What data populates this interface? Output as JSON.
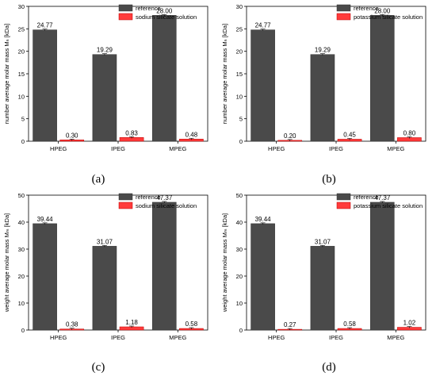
{
  "series_colors": {
    "reference": "#4a4a4a",
    "silicate": "#ff3b3b"
  },
  "chart_data": [
    {
      "type": "bar",
      "panel_label": "(a)",
      "ylabel": "number average molar mass Mₙ [kDa]",
      "categories": [
        "HPEG",
        "IPEG",
        "MPEG"
      ],
      "ylim": [
        0,
        30
      ],
      "yticks": [
        0,
        5,
        10,
        15,
        20,
        25,
        30
      ],
      "legend_position": "top-right",
      "series": [
        {
          "name": "reference",
          "values": [
            24.77,
            19.29,
            28.0
          ],
          "labels": [
            "24.77",
            "19.29",
            "28.00"
          ]
        },
        {
          "name": "sodium silicate solution",
          "values": [
            0.3,
            0.83,
            0.48
          ],
          "labels": [
            "0.30",
            "0.83",
            "0.48"
          ]
        }
      ]
    },
    {
      "type": "bar",
      "panel_label": "(b)",
      "ylabel": "number average molar mass Mₙ [kDa]",
      "categories": [
        "HPEG",
        "IPEG",
        "MPEG"
      ],
      "ylim": [
        0,
        30
      ],
      "yticks": [
        0,
        5,
        10,
        15,
        20,
        25,
        30
      ],
      "legend_position": "top-right",
      "series": [
        {
          "name": "reference",
          "values": [
            24.77,
            19.29,
            28.0
          ],
          "labels": [
            "24.77",
            "19.29",
            "28.00"
          ]
        },
        {
          "name": "potassium silicate solution",
          "values": [
            0.2,
            0.45,
            0.8
          ],
          "labels": [
            "0.20",
            "0.45",
            "0.80"
          ]
        }
      ]
    },
    {
      "type": "bar",
      "panel_label": "(c)",
      "ylabel": "weight average molar mass Mₘ [kDa]",
      "categories": [
        "HPEG",
        "IPEG",
        "MPEG"
      ],
      "ylim": [
        0,
        50
      ],
      "yticks": [
        0,
        10,
        20,
        30,
        40,
        50
      ],
      "legend_position": "top-right",
      "series": [
        {
          "name": "reference",
          "values": [
            39.44,
            31.07,
            47.37
          ],
          "labels": [
            "39.44",
            "31.07",
            "47.37"
          ]
        },
        {
          "name": "sodium silicate solution",
          "values": [
            0.38,
            1.18,
            0.58
          ],
          "labels": [
            "0.38",
            "1.18",
            "0.58"
          ]
        }
      ]
    },
    {
      "type": "bar",
      "panel_label": "(d)",
      "ylabel": "weight average molar mass Mₘ [kDa]",
      "categories": [
        "HPEG",
        "IPEG",
        "MPEG"
      ],
      "ylim": [
        0,
        50
      ],
      "yticks": [
        0,
        10,
        20,
        30,
        40,
        50
      ],
      "legend_position": "top-right",
      "series": [
        {
          "name": "reference",
          "values": [
            39.44,
            31.07,
            47.37
          ],
          "labels": [
            "39.44",
            "31.07",
            "47.37"
          ]
        },
        {
          "name": "potassium silicate solution",
          "values": [
            0.27,
            0.58,
            1.02
          ],
          "labels": [
            "0.27",
            "0.58",
            "1.02"
          ]
        }
      ]
    }
  ]
}
